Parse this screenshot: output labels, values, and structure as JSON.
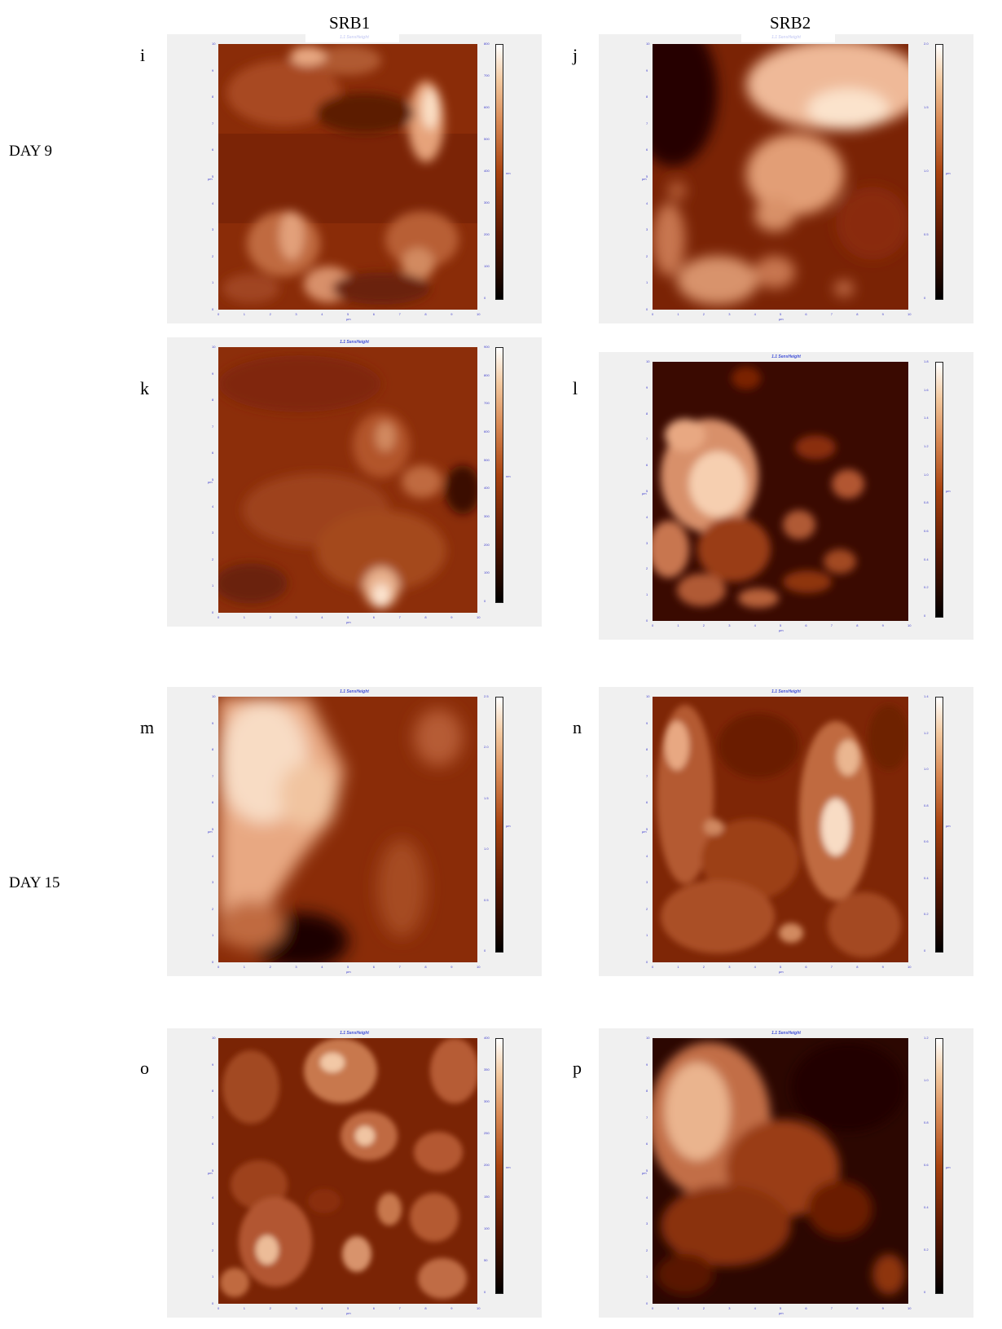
{
  "columns": {
    "srb1": "SRB1",
    "srb2": "SRB2"
  },
  "rows": {
    "day9": "DAY 9",
    "day15": "DAY 15"
  },
  "panels": [
    {
      "letter": "i",
      "title": "1.1 SensHeight",
      "colorbar_ticks": [
        "0",
        "100",
        "200",
        "300",
        "400",
        "500",
        "600",
        "700",
        "800"
      ],
      "colorbar_unit": "nm"
    },
    {
      "letter": "j",
      "title": "1.1 SensHeight",
      "colorbar_ticks": [
        "0",
        "0.5",
        "1.0",
        "1.5",
        "2.0"
      ],
      "colorbar_unit": "µm"
    },
    {
      "letter": "k",
      "title": "1.1 SensHeight",
      "colorbar_ticks": [
        "0",
        "100",
        "200",
        "300",
        "400",
        "500",
        "600",
        "700",
        "800",
        "900"
      ],
      "colorbar_unit": "nm"
    },
    {
      "letter": "l",
      "title": "1.1 SensHeight",
      "colorbar_ticks": [
        "0",
        "0.2",
        "0.4",
        "0.6",
        "0.8",
        "1.0",
        "1.2",
        "1.4",
        "1.6",
        "1.8"
      ],
      "colorbar_unit": "µm"
    },
    {
      "letter": "m",
      "title": "1.1 SensHeight",
      "colorbar_ticks": [
        "0",
        "0.5",
        "1.0",
        "1.5",
        "2.0",
        "2.5"
      ],
      "colorbar_unit": "µm"
    },
    {
      "letter": "n",
      "title": "1.1 SensHeight",
      "colorbar_ticks": [
        "0",
        "0.2",
        "0.4",
        "0.6",
        "0.8",
        "1.0",
        "1.2",
        "1.4"
      ],
      "colorbar_unit": "µm"
    },
    {
      "letter": "o",
      "title": "1.1 SensHeight",
      "colorbar_ticks": [
        "0",
        "50",
        "100",
        "150",
        "200",
        "250",
        "300",
        "350",
        "400"
      ],
      "colorbar_unit": "nm"
    },
    {
      "letter": "p",
      "title": "1.1 SensHeight",
      "colorbar_ticks": [
        "0",
        "0.2",
        "0.4",
        "0.6",
        "0.8",
        "1.0",
        "1.2"
      ],
      "colorbar_unit": "µm"
    }
  ],
  "axis": {
    "ticks": [
      "0",
      "1",
      "2",
      "3",
      "4",
      "5",
      "6",
      "7",
      "8",
      "9",
      "10"
    ],
    "unit": "µm"
  },
  "colors": {
    "title_blue": "#4050d8",
    "panel_bg": "#f0f0f0"
  }
}
